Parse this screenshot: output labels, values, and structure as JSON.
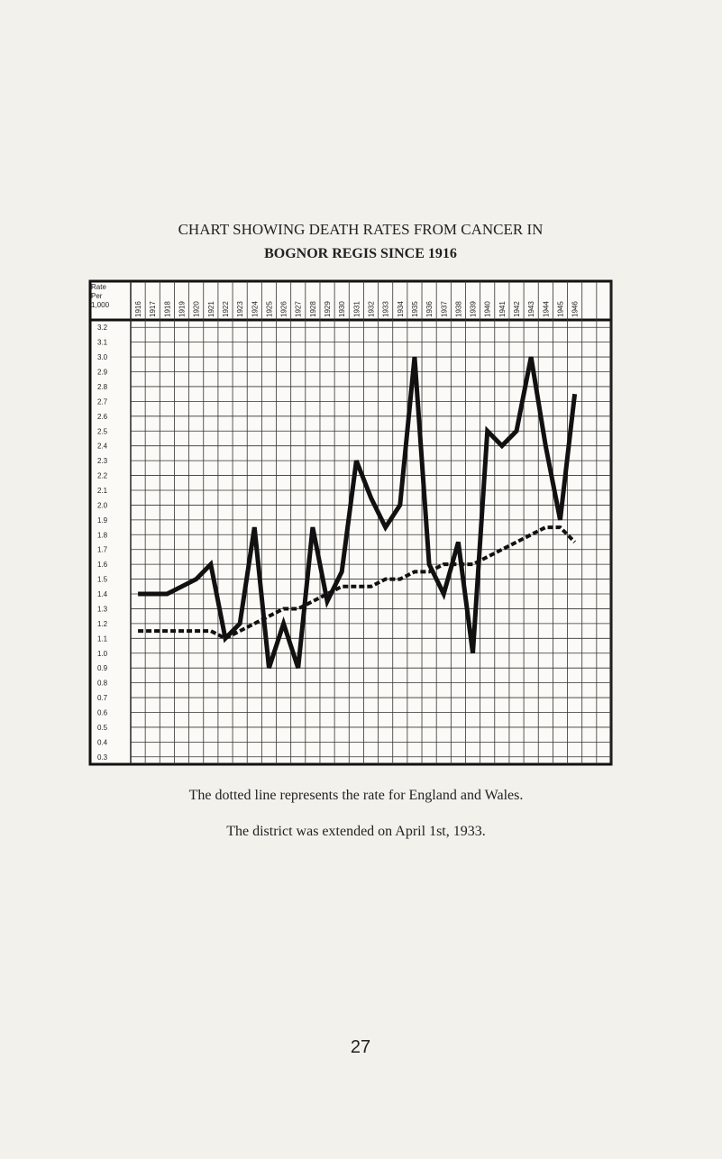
{
  "chart_data": {
    "type": "line",
    "title": "CHART SHOWING DEATH RATES FROM CANCER IN",
    "subtitle": "BOGNOR REGIS SINCE 1916",
    "ylabel": "Rate Per 1,000",
    "categories": [
      "1916",
      "1917",
      "1918",
      "1919",
      "1920",
      "1921",
      "1922",
      "1923",
      "1924",
      "1925",
      "1926",
      "1927",
      "1928",
      "1929",
      "1930",
      "1931",
      "1932",
      "1933",
      "1934",
      "1935",
      "1936",
      "1937",
      "1938",
      "1939",
      "1940",
      "1941",
      "1942",
      "1943",
      "1944",
      "1945",
      "1946"
    ],
    "series": [
      {
        "color": "#111111",
        "style": "solid",
        "values": [
          1.4,
          1.4,
          1.4,
          1.45,
          1.5,
          1.6,
          1.1,
          1.2,
          1.85,
          0.9,
          1.2,
          0.9,
          1.85,
          1.35,
          1.55,
          2.3,
          2.05,
          1.85,
          2.0,
          3.0,
          1.6,
          1.4,
          1.75,
          1.0,
          2.5,
          2.4,
          2.5,
          3.0,
          2.4,
          1.9,
          2.75
        ]
      },
      {
        "color": "#111111",
        "style": "dotted",
        "values": [
          1.15,
          1.15,
          1.15,
          1.15,
          1.15,
          1.15,
          1.1,
          1.15,
          1.2,
          1.25,
          1.3,
          1.3,
          1.35,
          1.4,
          1.45,
          1.45,
          1.45,
          1.5,
          1.5,
          1.55,
          1.55,
          1.6,
          1.6,
          1.6,
          1.65,
          1.7,
          1.75,
          1.8,
          1.85,
          1.85,
          1.75
        ]
      }
    ],
    "ylim": [
      0.25,
      3.25
    ],
    "yticks": [
      3.2,
      3.1,
      {
        "value": 3.0,
        "label": "3.0"
      },
      2.9,
      2.8,
      2.7,
      2.6,
      2.5,
      2.4,
      2.3,
      2.2,
      2.1,
      {
        "value": 2.0,
        "label": "2.0"
      },
      1.9,
      1.8,
      1.7,
      1.6,
      1.5,
      1.4,
      1.3,
      1.2,
      1.1,
      {
        "value": 1.0,
        "label": "1.0"
      },
      0.9,
      0.8,
      0.7,
      0.6,
      0.5,
      0.4,
      0.3
    ],
    "grid": true,
    "notes": [
      "The dotted line represents the rate for England and Wales.",
      "The district was extended on April 1st, 1933."
    ],
    "page_number": "27"
  }
}
